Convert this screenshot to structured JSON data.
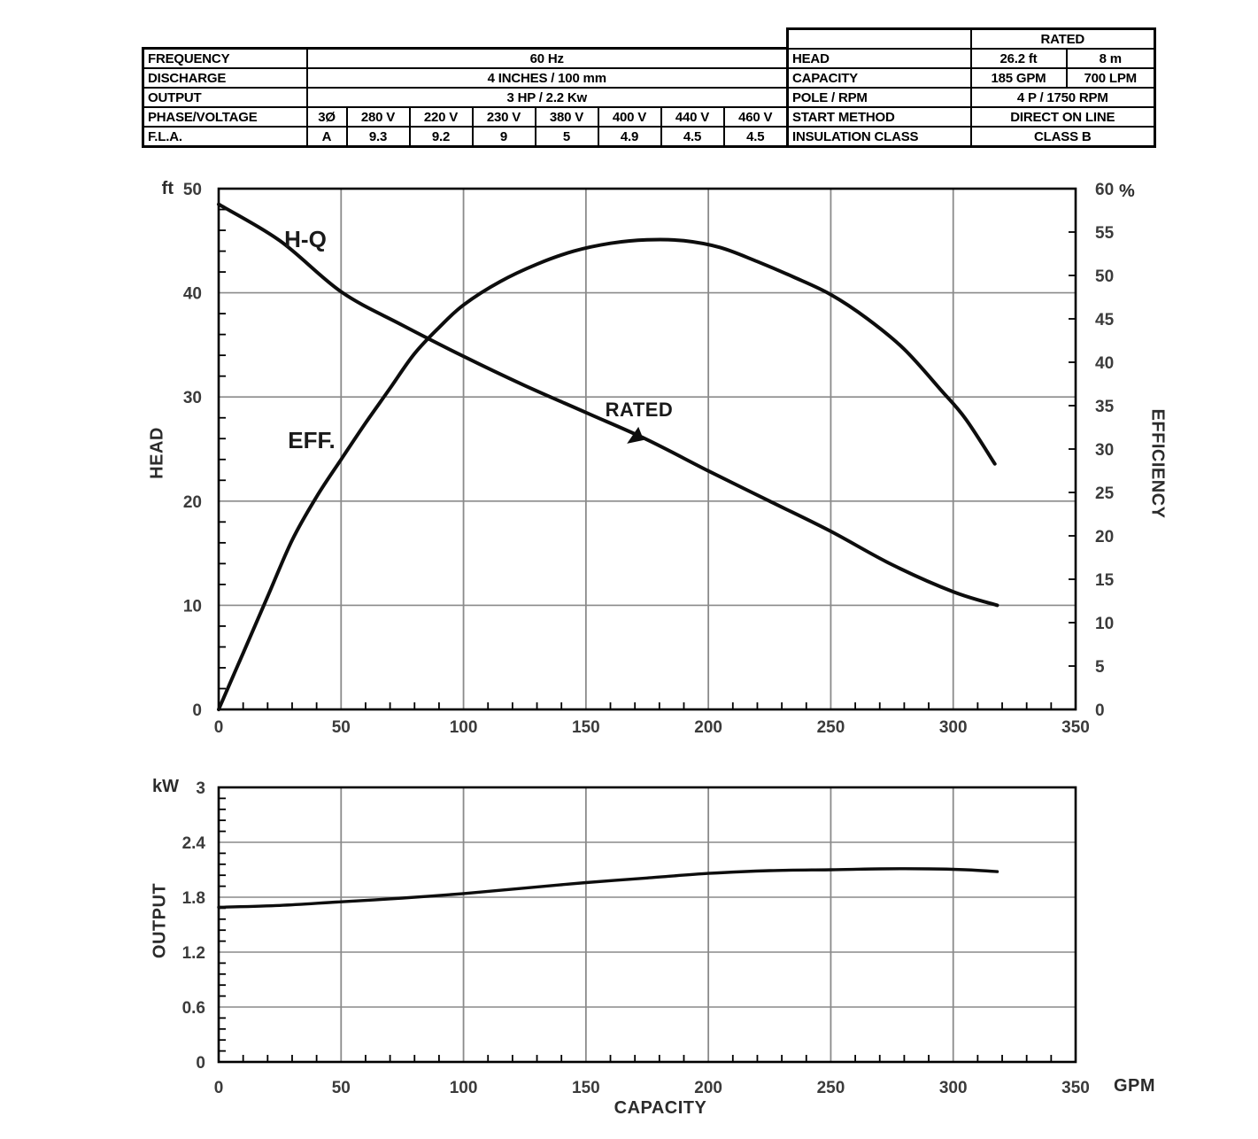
{
  "spec_table": {
    "rows": [
      {
        "label": "FREQUENCY",
        "value": "60 Hz"
      },
      {
        "label": "DISCHARGE",
        "value": "4 INCHES / 100 mm"
      },
      {
        "label": "OUTPUT",
        "value": "3 HP / 2.2 Kw"
      },
      {
        "label": "PHASE/VOLTAGE",
        "values": [
          "3Ø",
          "280 V",
          "220 V",
          "230 V",
          "380 V",
          "400 V",
          "440 V",
          "460 V"
        ]
      },
      {
        "label": "F.L.A.",
        "values": [
          "A",
          "9.3",
          "9.2",
          "9",
          "5",
          "4.9",
          "4.5",
          "4.5"
        ]
      }
    ]
  },
  "rated_table": {
    "header": "RATED",
    "rows": [
      {
        "label": "HEAD",
        "values": [
          "26.2 ft",
          "8 m"
        ]
      },
      {
        "label": "CAPACITY",
        "values": [
          "185 GPM",
          "700 LPM"
        ]
      },
      {
        "label": "POLE / RPM",
        "value": "4 P / 1750 RPM"
      },
      {
        "label": "START METHOD",
        "value": "DIRECT ON LINE"
      },
      {
        "label": "INSULATION CLASS",
        "value": "CLASS B"
      }
    ]
  },
  "colors": {
    "curve": "#0d0d0d",
    "grid": "#8a8a8a",
    "axis": "#000000",
    "tick_text": "#3b3b3b"
  },
  "chart_data": [
    {
      "type": "line",
      "title": "Head / Efficiency vs Capacity",
      "x": {
        "label": "CAPACITY",
        "lim": [
          0,
          350
        ],
        "ticks": [
          0,
          50,
          100,
          150,
          200,
          250,
          300,
          350
        ],
        "minor_step": 10
      },
      "y_left": {
        "label": "HEAD",
        "unit": "ft",
        "lim": [
          0,
          50
        ],
        "ticks": [
          0,
          10,
          20,
          30,
          40,
          50
        ],
        "minor_step": 2
      },
      "y_right": {
        "label": "EFFICIENCY",
        "unit": "%",
        "lim": [
          0,
          60
        ],
        "ticks": [
          0,
          5,
          10,
          15,
          20,
          25,
          30,
          35,
          40,
          45,
          50,
          55,
          60
        ]
      },
      "grid": true,
      "series": [
        {
          "name": "H-Q",
          "axis": "left",
          "points": [
            [
              0,
              48.5
            ],
            [
              25,
              45.0
            ],
            [
              50,
              40.1
            ],
            [
              75,
              36.9
            ],
            [
              100,
              33.9
            ],
            [
              125,
              31.1
            ],
            [
              150,
              28.5
            ],
            [
              175,
              25.9
            ],
            [
              200,
              22.9
            ],
            [
              225,
              20.0
            ],
            [
              250,
              17.1
            ],
            [
              275,
              13.9
            ],
            [
              300,
              11.3
            ],
            [
              318,
              10.0
            ]
          ]
        },
        {
          "name": "EFF.",
          "axis": "right",
          "points": [
            [
              0,
              0
            ],
            [
              10,
              6.5
            ],
            [
              20,
              13
            ],
            [
              30,
              19.5
            ],
            [
              40,
              24.5
            ],
            [
              50,
              28.8
            ],
            [
              60,
              33
            ],
            [
              70,
              37
            ],
            [
              80,
              41
            ],
            [
              90,
              44
            ],
            [
              100,
              46.6
            ],
            [
              115,
              49.3
            ],
            [
              130,
              51.3
            ],
            [
              145,
              52.8
            ],
            [
              160,
              53.7
            ],
            [
              175,
              54.1
            ],
            [
              190,
              54.0
            ],
            [
              205,
              53.2
            ],
            [
              220,
              51.6
            ],
            [
              235,
              49.8
            ],
            [
              250,
              47.8
            ],
            [
              265,
              45.0
            ],
            [
              280,
              41.5
            ],
            [
              295,
              36.8
            ],
            [
              305,
              33.5
            ],
            [
              317,
              28.3
            ]
          ]
        }
      ],
      "annotation": {
        "text": "RATED",
        "x": 170,
        "y": 26.2
      }
    },
    {
      "type": "line",
      "title": "Output vs Capacity",
      "x": {
        "label": "CAPACITY",
        "unit": "GPM",
        "lim": [
          0,
          350
        ],
        "ticks": [
          0,
          50,
          100,
          150,
          200,
          250,
          300,
          350
        ],
        "minor_step": 10
      },
      "y": {
        "label": "OUTPUT",
        "unit": "kW",
        "lim": [
          0,
          3
        ],
        "ticks": [
          0,
          0.6,
          1.2,
          1.8,
          2.4,
          3
        ],
        "tick_labels": [
          "0",
          "0.6",
          "1.2",
          "1.8",
          "2.4",
          "3"
        ],
        "minor_step": 0.12
      },
      "grid": true,
      "series": [
        {
          "name": "OUTPUT",
          "axis": "left",
          "points": [
            [
              0,
              1.69
            ],
            [
              25,
              1.71
            ],
            [
              50,
              1.75
            ],
            [
              75,
              1.79
            ],
            [
              100,
              1.84
            ],
            [
              125,
              1.9
            ],
            [
              150,
              1.96
            ],
            [
              175,
              2.01
            ],
            [
              200,
              2.06
            ],
            [
              225,
              2.09
            ],
            [
              250,
              2.1
            ],
            [
              270,
              2.11
            ],
            [
              290,
              2.11
            ],
            [
              305,
              2.1
            ],
            [
              318,
              2.08
            ]
          ]
        }
      ]
    }
  ]
}
